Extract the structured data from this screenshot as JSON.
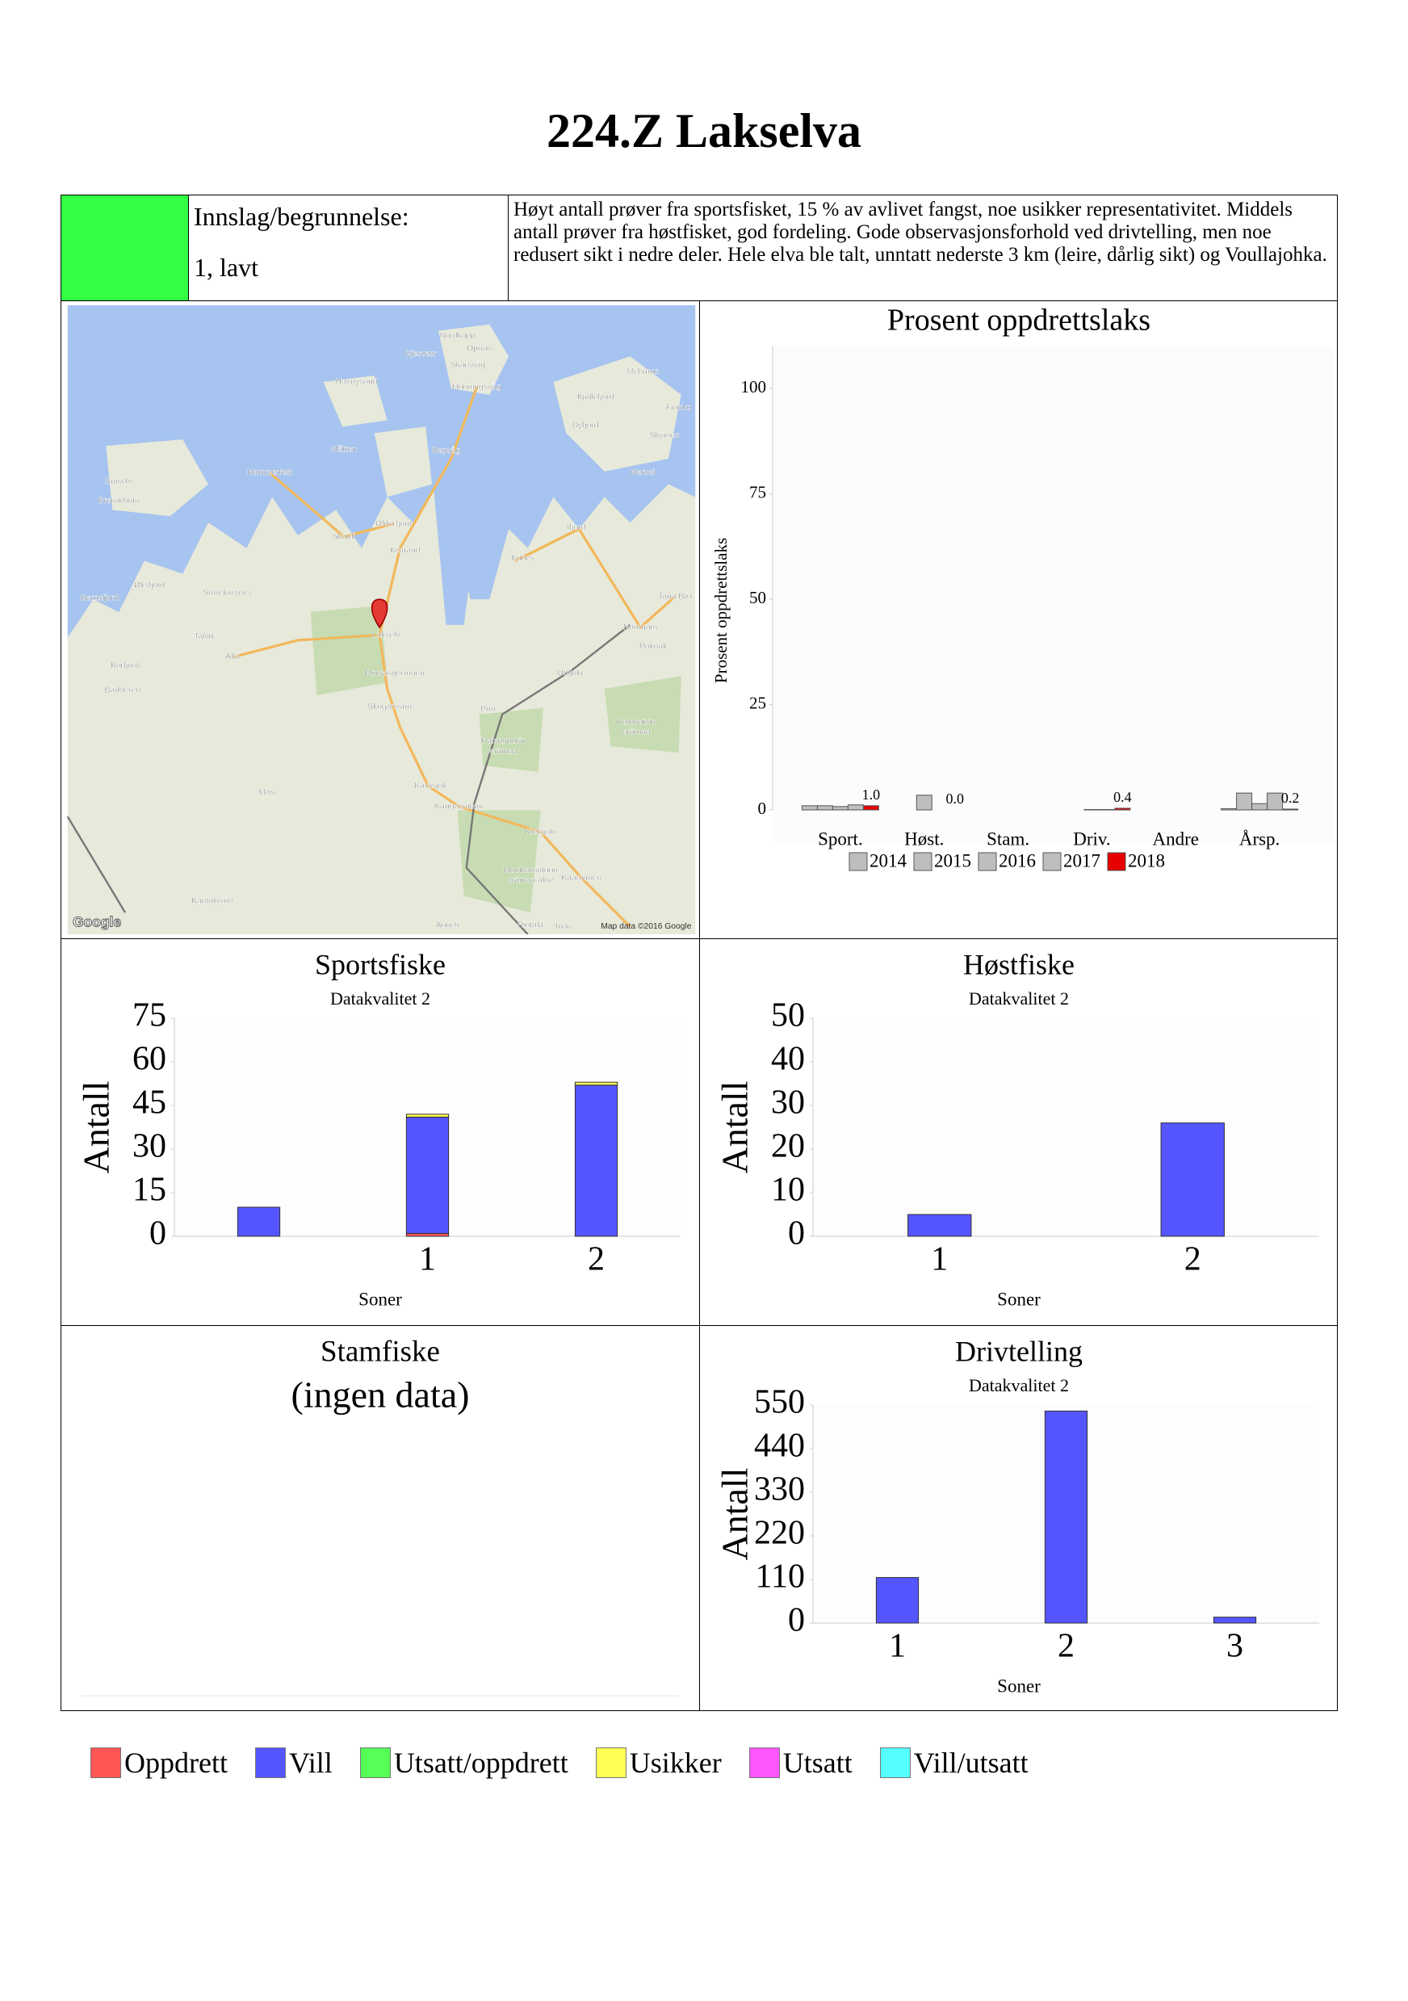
{
  "title": "224.Z Lakselva",
  "info": {
    "color": "#33ff44",
    "label": "Innslag/begrunnelse:",
    "rating": "1, lavt",
    "text": "Høyt antall prøver fra sportsfisket, 15 % av avlivet fangst, noe usikker representativitet. Middels antall prøver fra høstfisket, god fordeling. Gode observasjonsforhold ved drivtelling, men noe redusert sikt i nedre deler. Hele elva ble talt, unntatt nederste 3 km (leire, dårlig sikt) og Voullajohka."
  },
  "map": {
    "labels": [
      "Nordkapp",
      "Gjesvær",
      "Opnan",
      "Skarsvåg",
      "Havøysund",
      "Honningsvåg",
      "Mehamn",
      "Kjøllefjord",
      "Finnko",
      "Dyfjord",
      "Skjånes",
      "Slåtten",
      "Repvåg",
      "Nervei",
      "Hammerfest",
      "Sørvær",
      "Breivikbotn",
      "Olderfjord",
      "Ifjord",
      "Skaidi",
      "Kistrand",
      "Kunes",
      "Øksfjord",
      "Storekorsnes",
      "Bergsfjord",
      "Tana Bru",
      "Lakselv",
      "Nuorgam",
      "Talvik",
      "Polmak",
      "Alta",
      "Burfjord",
      "Porsangermoen",
      "Utsjoki",
      "Badderen",
      "Skoganvarre",
      "Port",
      "Kaldoaivin",
      "erämaa",
      "Paistunturin",
      "erämaa",
      "Karasjok",
      "Masi",
      "Karigasniemi",
      "Kielajoki",
      "Muotkatunturin",
      "erämaa-alue",
      "Kaamanen",
      "Kautokeino",
      "Angeli",
      "Riutula",
      "Inari"
    ],
    "attribution": "Map data ©2016 Google",
    "logo": "Google"
  },
  "chart_data": [
    {
      "type": "grouped_bar",
      "title": "Prosent oppdrettslaks",
      "ylabel": "Prosent oppdrettslaks",
      "categories": [
        "Sport.",
        "Høst.",
        "Stam.",
        "Driv.",
        "Andre",
        "Årsp."
      ],
      "ylim": [
        0,
        110
      ],
      "yticks": [
        0,
        25,
        50,
        75,
        100
      ],
      "series": [
        {
          "name": "2014",
          "color": "#bebebe",
          "values": [
            1,
            null,
            null,
            null,
            null,
            0.3
          ]
        },
        {
          "name": "2015",
          "color": "#bebebe",
          "values": [
            1,
            null,
            null,
            null,
            null,
            4
          ]
        },
        {
          "name": "2016",
          "color": "#bebebe",
          "values": [
            0.8,
            3.5,
            null,
            0.1,
            null,
            1.5
          ]
        },
        {
          "name": "2017",
          "color": "#bebebe",
          "values": [
            1.2,
            null,
            null,
            0.1,
            null,
            4
          ]
        },
        {
          "name": "2018",
          "color": "#e60000",
          "values": [
            1.0,
            0.0,
            null,
            0.4,
            null,
            0.2
          ],
          "value_labels": [
            "1.0",
            "0.0",
            null,
            "0.4",
            null,
            "0.2"
          ]
        }
      ]
    },
    {
      "type": "stacked_bar",
      "title": "Sportsfiske",
      "subtitle": "Datakvalitet 2",
      "ylabel": "Antall",
      "xlabel": "Soner",
      "categories": [
        null,
        "1",
        "2"
      ],
      "ylim": [
        0,
        75
      ],
      "yticks": [
        0,
        15,
        30,
        45,
        60,
        75
      ],
      "series": [
        {
          "values": [
            0,
            1,
            0
          ]
        },
        {
          "values": [
            10,
            40,
            52
          ]
        },
        {
          "values": [
            0,
            0,
            0
          ]
        },
        {
          "values": [
            0,
            1,
            1
          ]
        },
        {
          "values": [
            0,
            0,
            0
          ]
        },
        {
          "values": [
            0,
            0,
            0
          ]
        }
      ]
    },
    {
      "type": "stacked_bar",
      "title": "Høstfiske",
      "subtitle": "Datakvalitet 2",
      "ylabel": "Antall",
      "xlabel": "Soner",
      "categories": [
        "1",
        "2"
      ],
      "ylim": [
        0,
        50
      ],
      "yticks": [
        0,
        10,
        20,
        30,
        40,
        50
      ],
      "series": [
        {
          "values": [
            0,
            0
          ]
        },
        {
          "values": [
            5,
            26
          ]
        },
        {
          "values": [
            0,
            0
          ]
        },
        {
          "values": [
            0,
            0
          ]
        },
        {
          "values": [
            0,
            0
          ]
        },
        {
          "values": [
            0,
            0
          ]
        }
      ]
    },
    {
      "type": "empty",
      "title": "Stamfiske",
      "note": "(ingen data)"
    },
    {
      "type": "stacked_bar",
      "title": "Drivtelling",
      "subtitle": "Datakvalitet 2",
      "ylabel": "Antall",
      "xlabel": "Soner",
      "categories": [
        "1",
        "2",
        "3"
      ],
      "ylim": [
        0,
        550
      ],
      "yticks": [
        0,
        110,
        220,
        330,
        440,
        550
      ],
      "series": [
        {
          "values": [
            0,
            0,
            0
          ]
        },
        {
          "values": [
            115,
            535,
            15
          ]
        },
        {
          "values": [
            0,
            0,
            0
          ]
        },
        {
          "values": [
            0,
            0,
            0
          ]
        },
        {
          "values": [
            0,
            0,
            0
          ]
        },
        {
          "values": [
            0,
            0,
            0
          ]
        }
      ]
    }
  ],
  "legend": [
    {
      "name": "Oppdrett",
      "color": "#ff5555"
    },
    {
      "name": "Vill",
      "color": "#5555ff"
    },
    {
      "name": "Utsatt/oppdrett",
      "color": "#55ff55"
    },
    {
      "name": "Usikker",
      "color": "#ffff55"
    },
    {
      "name": "Utsatt",
      "color": "#ff55ff"
    },
    {
      "name": "Vill/utsatt",
      "color": "#55ffff"
    }
  ]
}
